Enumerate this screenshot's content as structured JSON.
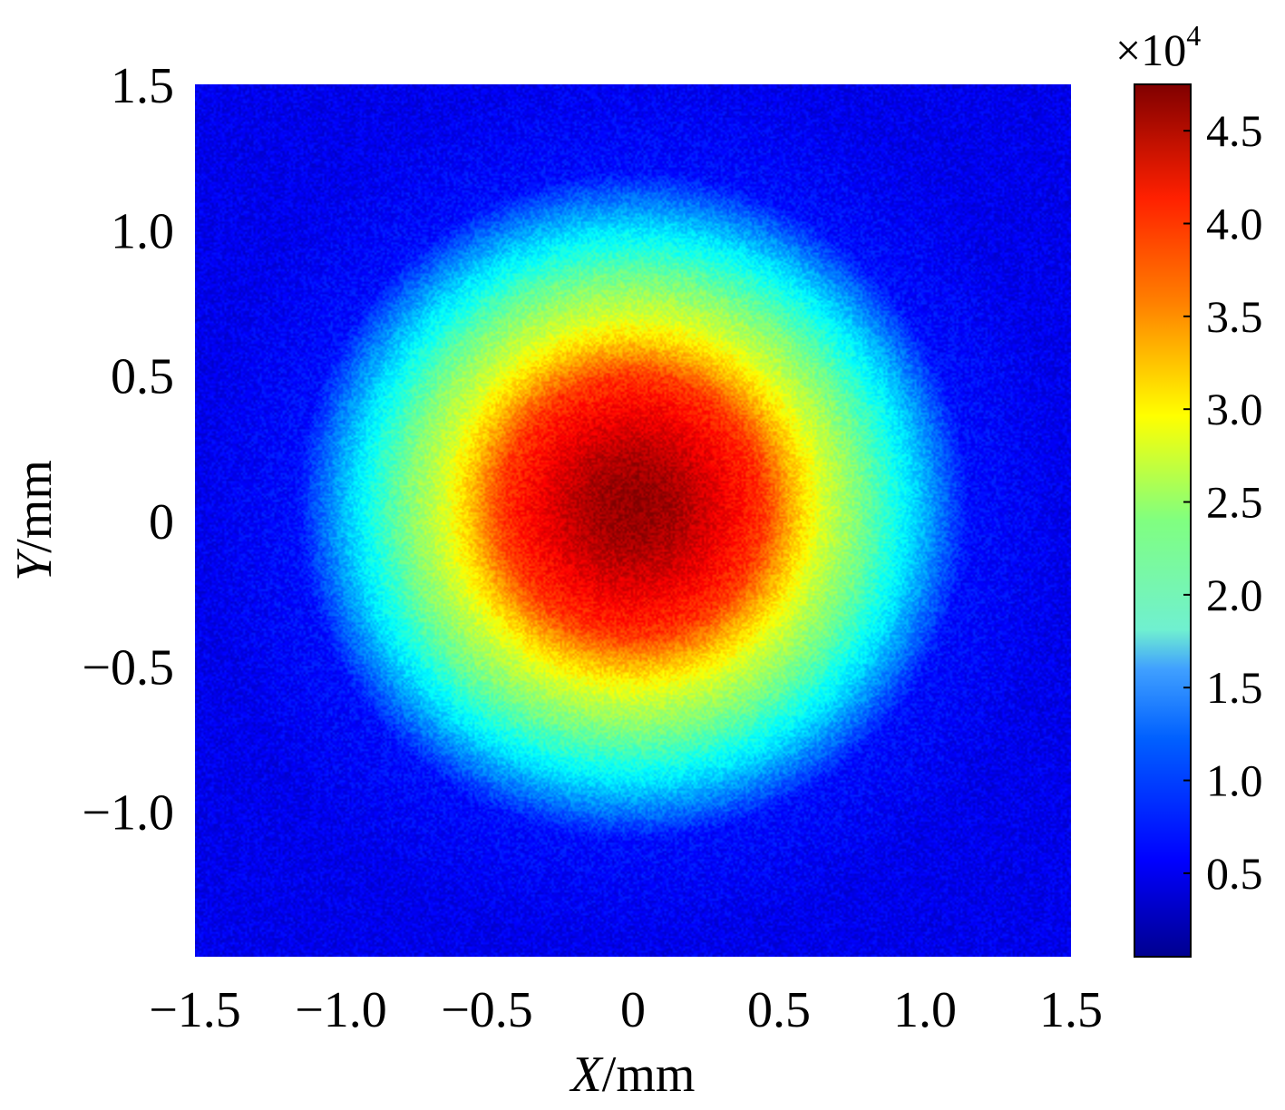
{
  "chart_data": {
    "type": "heatmap",
    "title": "",
    "xlabel_var": "X",
    "xlabel_unit": "/mm",
    "ylabel_var": "Y",
    "ylabel_unit": "/mm",
    "xlim": [
      -1.5,
      1.5
    ],
    "ylim": [
      -1.5,
      1.5
    ],
    "x_ticks": [
      -1.5,
      -1.0,
      -0.5,
      0,
      0.5,
      1.0,
      1.5
    ],
    "x_tick_labels": [
      "−1.5",
      "−1.0",
      "−0.5",
      "0",
      "0.5",
      "1.0",
      "1.5"
    ],
    "y_ticks": [
      1.5,
      1.0,
      0.5,
      0,
      -0.5,
      -1.0
    ],
    "y_tick_labels": [
      "1.5",
      "1.0",
      "0.5",
      "0",
      "−0.5",
      "−1.0"
    ],
    "colorbar": {
      "multiplier_base": "×10",
      "multiplier_exp": "4",
      "range": [
        0.05,
        4.75
      ],
      "ticks": [
        0.5,
        1.0,
        1.5,
        2.0,
        2.5,
        3.0,
        3.5,
        4.0,
        4.5
      ],
      "tick_labels": [
        "0.5",
        "1.0",
        "1.5",
        "2.0",
        "2.5",
        "3.0",
        "3.5",
        "4.0",
        "4.5"
      ],
      "colormap": "jet"
    },
    "distribution": {
      "shape": "radially symmetric beam spot",
      "center": [
        0.0,
        0.05
      ],
      "peak": 4.7,
      "background": 0.6,
      "radial_profile": [
        {
          "r": 0.0,
          "value": 4.7
        },
        {
          "r": 0.15,
          "value": 4.55
        },
        {
          "r": 0.3,
          "value": 4.25
        },
        {
          "r": 0.45,
          "value": 3.9
        },
        {
          "r": 0.55,
          "value": 3.3
        },
        {
          "r": 0.65,
          "value": 2.8
        },
        {
          "r": 0.8,
          "value": 2.3
        },
        {
          "r": 0.95,
          "value": 1.7
        },
        {
          "r": 1.05,
          "value": 1.2
        },
        {
          "r": 1.15,
          "value": 0.7
        },
        {
          "r": 1.5,
          "value": 0.55
        }
      ]
    }
  }
}
